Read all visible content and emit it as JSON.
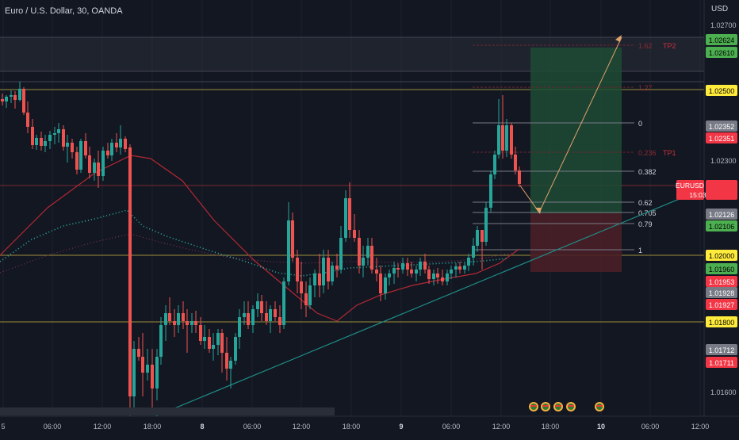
{
  "header": {
    "title": "Euro / U.S. Dollar, 30, OANDA",
    "currency": "USD"
  },
  "symbol_tag": {
    "name": "EURUSD",
    "countdown": "15:03"
  },
  "x_axis": {
    "labels": [
      "5",
      "06:00",
      "12:00",
      "18:00",
      "8",
      "06:00",
      "12:00",
      "18:00",
      "9",
      "06:00",
      "12:00",
      "18:00",
      "10",
      "06:00",
      "12:00"
    ]
  },
  "y_axis": {
    "ticks": [
      "1.02700",
      "1.02300",
      "1.01600"
    ]
  },
  "price_tags": [
    {
      "label": "1.02624",
      "bg": "#4caf50",
      "fg": "#000000"
    },
    {
      "label": "1.02610",
      "bg": "#4caf50",
      "fg": "#000000"
    },
    {
      "label": "1.02500",
      "bg": "#ffeb3b",
      "fg": "#000000"
    },
    {
      "label": "1.02352",
      "bg": "#787b86",
      "fg": "#ffffff"
    },
    {
      "label": "1.02351",
      "bg": "#f23645",
      "fg": "#ffffff"
    },
    {
      "label": "1.02208",
      "bg": "#f23645",
      "fg": "#ffffff"
    },
    {
      "label": "1.02126",
      "bg": "#787b86",
      "fg": "#ffffff"
    },
    {
      "label": "1.02106",
      "bg": "#4caf50",
      "fg": "#000000"
    },
    {
      "label": "1.02000",
      "bg": "#ffeb3b",
      "fg": "#000000"
    },
    {
      "label": "1.01960",
      "bg": "#4caf50",
      "fg": "#000000"
    },
    {
      "label": "1.01953",
      "bg": "#f23645",
      "fg": "#ffffff"
    },
    {
      "label": "1.01928",
      "bg": "#787b86",
      "fg": "#ffffff"
    },
    {
      "label": "1.01927",
      "bg": "#f23645",
      "fg": "#ffffff"
    },
    {
      "label": "1.01800",
      "bg": "#ffeb3b",
      "fg": "#000000"
    },
    {
      "label": "1.01712",
      "bg": "#787b86",
      "fg": "#ffffff"
    },
    {
      "label": "1.01711",
      "bg": "#f23645",
      "fg": "#ffffff"
    }
  ],
  "fib_levels": [
    {
      "label": "1.62",
      "note": "TP2",
      "faded": true
    },
    {
      "label": "1.27",
      "note": "",
      "faded": true
    },
    {
      "label": "0",
      "note": "",
      "faded": false
    },
    {
      "label": "0.236",
      "note": "TP1",
      "faded": true
    },
    {
      "label": "0.382",
      "note": "",
      "faded": false
    },
    {
      "label": "0.62",
      "note": "",
      "faded": false
    },
    {
      "label": "0.705",
      "note": "",
      "faded": false
    },
    {
      "label": "0.79",
      "note": "",
      "faded": false
    },
    {
      "label": "1",
      "note": "",
      "faded": false
    }
  ],
  "colors": {
    "background": "#131722",
    "grid": "#1e222d",
    "bull": "#26a69a",
    "bear": "#ef5350",
    "ma": "#b22833",
    "dotted_ma": "#2bb3a7",
    "target_zone": "#1f4b34",
    "stop_zone": "#4a1f27",
    "horizontal_line": "#9c8d3b",
    "trendline": "#1e8c86",
    "arrow": "#e0a36b"
  },
  "event_icons": [
    "flag-icon",
    "flag-icon",
    "flag-icon",
    "flag-icon",
    "flag-icon"
  ]
}
